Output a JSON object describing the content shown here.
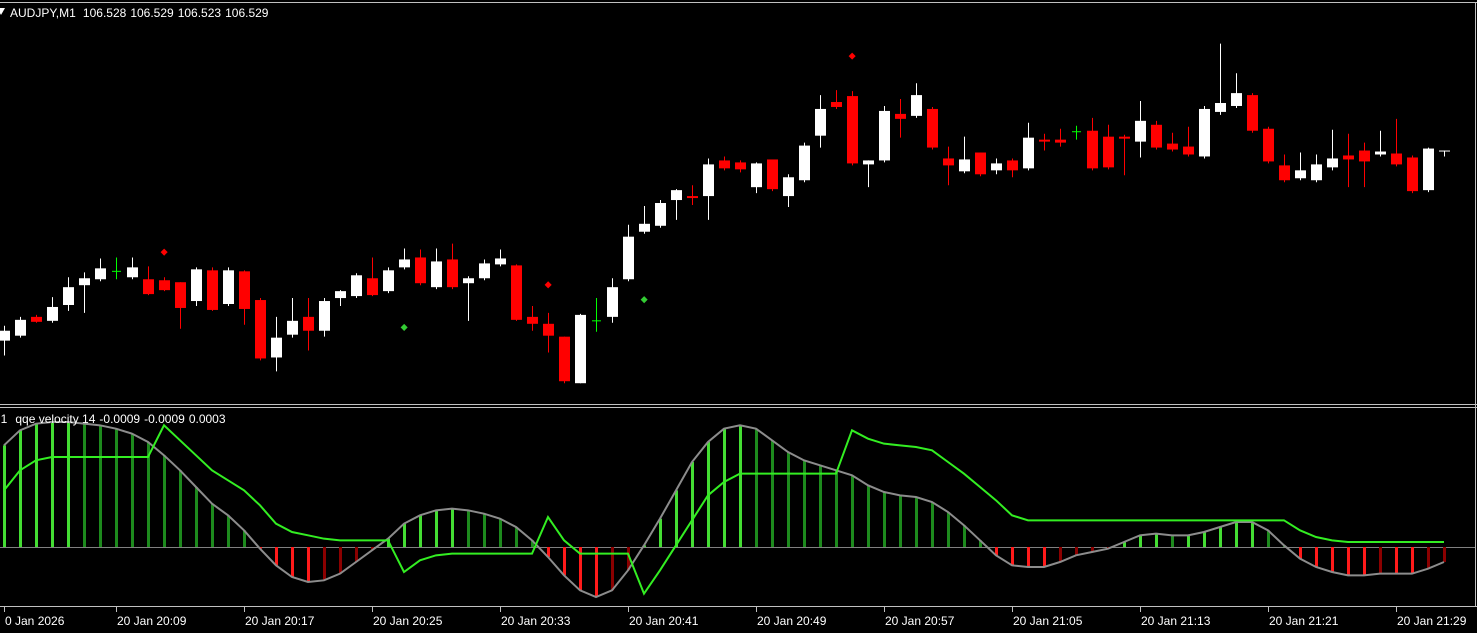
{
  "chart_data": [
    {
      "type": "candlestick",
      "title": "AUDJPY,M1",
      "bull_color": "#ffffff",
      "bear_color": "#ff0000",
      "doji_color": "#00ff00",
      "ylim": [
        106.273,
        106.677
      ],
      "open": [
        106.337,
        106.342,
        106.361,
        106.357,
        106.373,
        106.393,
        106.399,
        106.407,
        106.401,
        106.399,
        106.398,
        106.396,
        106.377,
        106.408,
        106.374,
        106.407,
        106.378,
        106.32,
        106.343,
        106.361,
        106.347,
        106.38,
        106.382,
        106.4,
        106.387,
        106.411,
        106.421,
        106.391,
        106.419,
        106.395,
        106.4,
        106.414,
        106.413,
        106.361,
        106.354,
        106.341,
        106.294,
        106.357,
        106.361,
        106.399,
        106.447,
        106.453,
        106.479,
        106.483,
        106.483,
        106.519,
        106.517,
        106.492,
        106.52,
        106.483,
        106.499,
        106.544,
        106.578,
        106.584,
        106.515,
        106.519,
        106.566,
        106.564,
        106.571,
        106.521,
        106.508,
        106.527,
        106.509,
        106.519,
        106.511,
        106.54,
        106.54,
        106.548,
        106.549,
        106.543,
        106.543,
        106.538,
        106.555,
        106.536,
        106.533,
        106.523,
        106.568,
        106.574,
        106.585,
        106.551,
        106.514,
        106.501,
        106.499,
        106.512,
        106.524,
        106.529,
        106.525,
        106.526,
        106.522,
        106.489,
        106.528
      ],
      "high": [
        106.352,
        106.361,
        106.363,
        106.381,
        106.401,
        106.406,
        106.42,
        106.421,
        106.421,
        106.412,
        106.401,
        106.396,
        106.411,
        106.411,
        106.411,
        106.408,
        106.38,
        106.361,
        106.38,
        106.38,
        106.38,
        106.388,
        106.405,
        106.421,
        106.411,
        106.43,
        106.429,
        106.43,
        106.435,
        106.402,
        106.419,
        106.429,
        106.414,
        106.372,
        106.365,
        106.341,
        106.364,
        106.38,
        106.4,
        106.454,
        106.473,
        106.479,
        106.49,
        106.494,
        106.521,
        106.523,
        106.519,
        106.517,
        106.52,
        106.505,
        106.537,
        106.585,
        106.59,
        106.589,
        106.519,
        106.574,
        106.581,
        106.597,
        106.573,
        106.533,
        106.543,
        106.527,
        106.521,
        106.521,
        106.557,
        106.546,
        106.551,
        106.554,
        106.562,
        106.555,
        106.545,
        106.579,
        106.559,
        106.547,
        106.553,
        106.574,
        106.637,
        106.607,
        106.587,
        106.553,
        106.525,
        106.527,
        106.525,
        106.55,
        106.546,
        106.537,
        106.549,
        106.561,
        106.524,
        106.532,
        106.529
      ],
      "low": [
        106.322,
        106.34,
        106.355,
        106.355,
        106.367,
        106.365,
        106.397,
        106.399,
        106.399,
        106.383,
        106.387,
        106.349,
        106.372,
        106.367,
        106.372,
        106.353,
        106.317,
        106.306,
        106.34,
        106.327,
        106.341,
        106.372,
        106.38,
        106.382,
        106.385,
        106.409,
        106.393,
        106.389,
        106.389,
        106.357,
        106.398,
        106.412,
        106.357,
        106.347,
        106.325,
        106.294,
        106.294,
        106.346,
        106.355,
        106.397,
        106.445,
        106.451,
        106.459,
        106.474,
        106.459,
        106.509,
        106.507,
        106.486,
        106.488,
        106.472,
        106.497,
        106.532,
        106.571,
        106.514,
        106.492,
        106.517,
        106.542,
        106.562,
        106.53,
        106.494,
        106.506,
        106.503,
        106.505,
        106.502,
        106.509,
        106.529,
        106.533,
        106.54,
        106.509,
        106.51,
        106.504,
        106.522,
        106.53,
        106.528,
        106.523,
        106.521,
        106.565,
        106.572,
        106.547,
        106.516,
        106.497,
        106.499,
        106.497,
        106.509,
        106.492,
        106.492,
        106.523,
        106.513,
        106.486,
        106.487,
        106.523
      ],
      "close": [
        106.347,
        106.358,
        106.356,
        106.371,
        106.391,
        106.4,
        106.41,
        106.407,
        106.411,
        106.384,
        106.388,
        106.37,
        106.409,
        106.368,
        106.408,
        106.369,
        106.319,
        106.34,
        106.357,
        106.347,
        106.377,
        106.387,
        106.403,
        106.383,
        106.408,
        106.419,
        106.395,
        106.417,
        106.391,
        106.4,
        106.415,
        106.42,
        106.358,
        106.354,
        106.342,
        106.296,
        106.363,
        106.357,
        106.391,
        106.442,
        106.455,
        106.476,
        106.489,
        106.481,
        106.515,
        106.511,
        106.51,
        106.516,
        106.49,
        106.502,
        106.534,
        106.571,
        106.573,
        106.516,
        106.519,
        106.569,
        106.561,
        106.585,
        106.532,
        106.514,
        106.52,
        106.505,
        106.516,
        106.509,
        106.542,
        106.538,
        106.537,
        106.548,
        106.511,
        106.512,
        106.541,
        106.559,
        106.532,
        106.53,
        106.525,
        106.571,
        106.577,
        106.587,
        106.549,
        106.518,
        106.499,
        106.509,
        106.515,
        106.521,
        106.52,
        106.518,
        106.528,
        106.515,
        106.488,
        106.531,
        106.529
      ],
      "signals": [
        {
          "x": 10,
          "value": 106.426,
          "color": "#ff0000"
        },
        {
          "x": 25,
          "value": 106.35,
          "color": "#33cc33"
        },
        {
          "x": 34,
          "value": 106.393,
          "color": "#ff0000"
        },
        {
          "x": 40,
          "value": 106.378,
          "color": "#33cc33"
        },
        {
          "x": 53,
          "value": 106.624,
          "color": "#ff0000"
        }
      ]
    },
    {
      "type": "bar",
      "title": "qqe velocity 14",
      "timeframe": "l1",
      "ylim": [
        -0.00348,
        0.00828
      ],
      "levels": [
        0
      ],
      "level_color": "#808080",
      "categories": [
        "0 Jan 2026",
        null,
        null,
        null,
        null,
        null,
        null,
        "20 Jan 20:09",
        null,
        null,
        null,
        null,
        null,
        null,
        null,
        "20 Jan 20:17",
        null,
        null,
        null,
        null,
        null,
        null,
        null,
        "20 Jan 20:25",
        null,
        null,
        null,
        null,
        null,
        null,
        null,
        "20 Jan 20:33",
        null,
        null,
        null,
        null,
        null,
        null,
        null,
        "20 Jan 20:41",
        null,
        null,
        null,
        null,
        null,
        null,
        null,
        "20 Jan 20:49",
        null,
        null,
        null,
        null,
        null,
        null,
        null,
        "20 Jan 20:57",
        null,
        null,
        null,
        null,
        null,
        null,
        null,
        "20 Jan 21:05",
        null,
        null,
        null,
        null,
        null,
        null,
        null,
        "20 Jan 21:13",
        null,
        null,
        null,
        null,
        null,
        null,
        null,
        "20 Jan 21:21",
        null,
        null,
        null,
        null,
        null,
        null,
        null,
        "20 Jan 21:29",
        null,
        null,
        null
      ],
      "series": [
        {
          "kind": "histogram",
          "colors": [
            "#44dd33",
            "#1d8a1d",
            "#ff1a1a",
            "#8b0000"
          ],
          "values": [
            0.0061,
            0.007,
            0.0074,
            0.0075,
            0.0075,
            0.0074,
            0.0073,
            0.0071,
            0.0068,
            0.0063,
            0.0055,
            0.0046,
            0.0036,
            0.0026,
            0.0019,
            0.001,
            -0.0001,
            -0.0011,
            -0.0018,
            -0.0021,
            -0.002,
            -0.0016,
            -0.0009,
            -0.0002,
            0.0005,
            0.0014,
            0.0019,
            0.0022,
            0.0023,
            0.0022,
            0.002,
            0.0017,
            0.0012,
            0.0004,
            -0.0006,
            -0.0017,
            -0.0026,
            -0.003,
            -0.0026,
            -0.0014,
            0.0001,
            0.0017,
            0.0034,
            0.0051,
            0.0063,
            0.0071,
            0.0073,
            0.0071,
            0.0064,
            0.0057,
            0.0052,
            0.0049,
            0.0046,
            0.0043,
            0.0037,
            0.0033,
            0.0031,
            0.003,
            0.0027,
            0.0021,
            0.0013,
            0.0004,
            -0.0005,
            -0.0011,
            -0.0012,
            -0.0012,
            -0.0009,
            -0.0005,
            -0.0003,
            -0.0001,
            0.0003,
            0.0007,
            0.0008,
            0.0007,
            0.0007,
            0.0009,
            0.0012,
            0.0015,
            0.0015,
            0.001,
            0.0001,
            -0.0007,
            -0.0012,
            -0.0015,
            -0.0017,
            -0.0017,
            -0.0016,
            -0.0016,
            -0.0016,
            -0.0013,
            -0.0009
          ]
        },
        {
          "kind": "line",
          "color": "#8c8c8c",
          "values": [
            0.0061,
            0.007,
            0.0074,
            0.0075,
            0.0075,
            0.0074,
            0.0073,
            0.0071,
            0.0068,
            0.0063,
            0.0055,
            0.0046,
            0.0036,
            0.0026,
            0.0019,
            0.001,
            -0.0001,
            -0.0011,
            -0.0018,
            -0.0021,
            -0.002,
            -0.0016,
            -0.0009,
            -0.0002,
            0.0005,
            0.0014,
            0.0019,
            0.0022,
            0.0023,
            0.0022,
            0.002,
            0.0017,
            0.0012,
            0.0004,
            -0.0006,
            -0.0017,
            -0.0026,
            -0.003,
            -0.0026,
            -0.0014,
            0.0001,
            0.0017,
            0.0034,
            0.0051,
            0.0063,
            0.0071,
            0.0073,
            0.0071,
            0.0064,
            0.0057,
            0.0052,
            0.0049,
            0.0046,
            0.0043,
            0.0037,
            0.0033,
            0.0031,
            0.003,
            0.0027,
            0.0021,
            0.0013,
            0.0004,
            -0.0005,
            -0.0011,
            -0.0012,
            -0.0012,
            -0.0009,
            -0.0005,
            -0.0003,
            -0.0001,
            0.0003,
            0.0007,
            0.0008,
            0.0007,
            0.0007,
            0.0009,
            0.0012,
            0.0015,
            0.0015,
            0.001,
            0.0001,
            -0.0007,
            -0.0012,
            -0.0015,
            -0.0017,
            -0.0017,
            -0.0016,
            -0.0016,
            -0.0016,
            -0.0013,
            -0.0009
          ]
        },
        {
          "kind": "line",
          "color": "#33ee22",
          "values": [
            0.0034,
            0.0046,
            0.0052,
            0.0054,
            0.0054,
            0.0054,
            0.0054,
            0.0054,
            0.0054,
            0.0054,
            0.0073,
            0.0064,
            0.0055,
            0.0046,
            0.004,
            0.0034,
            0.0025,
            0.0014,
            0.0009,
            0.0007,
            0.0005,
            0.0004,
            0.0004,
            0.0004,
            0.0004,
            -0.0015,
            -0.0008,
            -0.0005,
            -0.0004,
            -0.0004,
            -0.0004,
            -0.0004,
            -0.0004,
            -0.0004,
            0.0018,
            0.0004,
            -0.0004,
            -0.0004,
            -0.0004,
            -0.0004,
            -0.0028,
            -0.0014,
            0.0001,
            0.0016,
            0.0031,
            0.0039,
            0.0044,
            0.0044,
            0.0044,
            0.0044,
            0.0044,
            0.0044,
            0.0044,
            0.007,
            0.0065,
            0.0062,
            0.0061,
            0.006,
            0.0058,
            0.0051,
            0.0044,
            0.0036,
            0.0028,
            0.0019,
            0.0016,
            0.0016,
            0.0016,
            0.0016,
            0.0016,
            0.0016,
            0.0016,
            0.0016,
            0.0016,
            0.0016,
            0.0016,
            0.0016,
            0.0016,
            0.0016,
            0.0016,
            0.0016,
            0.0016,
            0.001,
            0.0006,
            0.0004,
            0.0003,
            0.0003,
            0.0003,
            0.0003,
            0.0003,
            0.0003,
            0.0003
          ]
        }
      ]
    }
  ]
}
